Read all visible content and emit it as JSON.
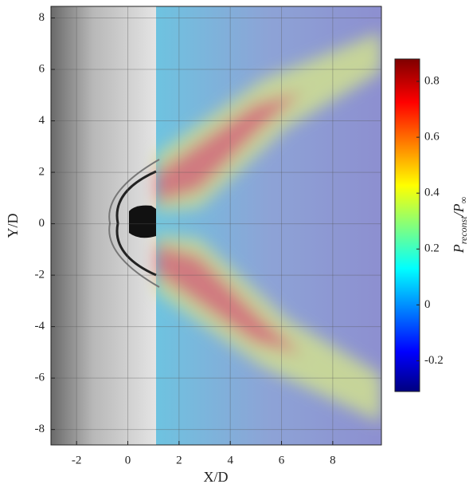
{
  "chart_data": {
    "type": "heatmap",
    "xlabel": "X/D",
    "ylabel": "Y/D",
    "xlim": [
      -3,
      9.9
    ],
    "ylim": [
      -8.6,
      8.45
    ],
    "xticks": [
      -2,
      0,
      2,
      4,
      6,
      8
    ],
    "yticks": [
      -8,
      -6,
      -4,
      -2,
      0,
      2,
      4,
      6,
      8
    ],
    "grid": true,
    "colorbar": {
      "clim": [
        -0.31,
        0.88
      ],
      "ticks": [
        -0.2,
        0,
        0.2,
        0.4,
        0.6,
        0.8
      ],
      "label_parts": [
        {
          "text": "P",
          "sub": "reconst"
        },
        {
          "text": "/P",
          "sub": "∞"
        }
      ]
    }
  }
}
